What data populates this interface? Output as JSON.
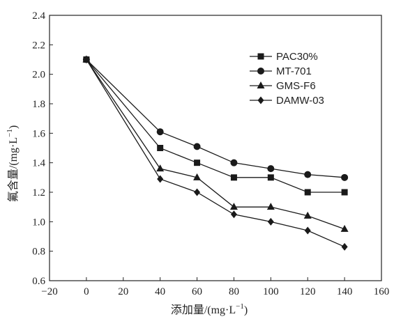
{
  "chart_data": {
    "type": "line",
    "xlabel": "添加量/(mg·L",
    "xlabel_sup": "−1",
    "xlabel_tail": ")",
    "ylabel": "氟含量/(mg·L",
    "ylabel_sup": "−1",
    "ylabel_tail": ")",
    "xlim": [
      -20,
      160
    ],
    "ylim": [
      0.6,
      2.4
    ],
    "xticks": [
      -20,
      0,
      20,
      40,
      60,
      80,
      100,
      120,
      140,
      160
    ],
    "xtick_labels": [
      "−20",
      "0",
      "20",
      "40",
      "60",
      "80",
      "100",
      "120",
      "140",
      "160"
    ],
    "yticks": [
      0.6,
      0.8,
      1.0,
      1.2,
      1.4,
      1.6,
      1.8,
      2.0,
      2.2,
      2.4
    ],
    "ytick_labels": [
      "0.6",
      "0.8",
      "1.0",
      "1.2",
      "1.4",
      "1.6",
      "1.8",
      "2.0",
      "2.2",
      "2.4"
    ],
    "x": [
      0,
      40,
      60,
      80,
      100,
      120,
      140
    ],
    "grid": false,
    "legend_position": "top-right",
    "series": [
      {
        "name": "PAC30%",
        "marker": "square",
        "values": [
          2.1,
          1.5,
          1.4,
          1.3,
          1.3,
          1.2,
          1.2
        ]
      },
      {
        "name": "MT-701",
        "marker": "circle",
        "values": [
          2.1,
          1.61,
          1.51,
          1.4,
          1.36,
          1.32,
          1.3
        ]
      },
      {
        "name": "GMS-F6",
        "marker": "triangle",
        "values": [
          2.1,
          1.36,
          1.3,
          1.1,
          1.1,
          1.04,
          0.95
        ]
      },
      {
        "name": "DAMW-03",
        "marker": "diamond",
        "values": [
          2.1,
          1.29,
          1.2,
          1.05,
          1.0,
          0.94,
          0.83
        ]
      }
    ],
    "colors": {
      "line": "#1a1a1a",
      "axis": "#222222"
    }
  }
}
